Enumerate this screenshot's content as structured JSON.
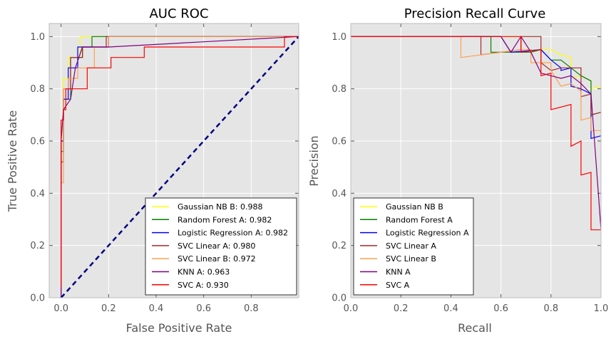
{
  "chart_data": [
    {
      "type": "line",
      "title": "AUC ROC",
      "xlabel": "False Positive Rate",
      "ylabel": "True Positive Rate",
      "xlim": [
        -0.05,
        1.0
      ],
      "ylim": [
        0.0,
        1.05
      ],
      "xticks": [
        "0.0",
        "0.2",
        "0.4",
        "0.6",
        "0.8"
      ],
      "xtick_values": [
        0,
        0.2,
        0.4,
        0.6,
        0.8
      ],
      "yticks": [
        "0.0",
        "0.2",
        "0.4",
        "0.6",
        "0.8",
        "1.0"
      ],
      "ytick_values": [
        0,
        0.2,
        0.4,
        0.6,
        0.8,
        1.0
      ],
      "grid": true,
      "legend_position": "lower-right",
      "series": [
        {
          "name": "Gaussian NB B:  0.988",
          "color": "#ffff00",
          "step": true,
          "x": [
            0,
            0,
            0.01,
            0.01,
            0.03,
            0.03,
            0.08,
            0.08,
            1.0
          ],
          "y": [
            0,
            0.52,
            0.52,
            0.84,
            0.84,
            0.92,
            0.92,
            1.0,
            1.0
          ]
        },
        {
          "name": "Random Forest A:  0.982",
          "color": "#008000",
          "step": true,
          "x": [
            0,
            0,
            0.01,
            0.01,
            0.04,
            0.04,
            0.09,
            0.09,
            0.13,
            0.13,
            1.0
          ],
          "y": [
            0,
            0.56,
            0.56,
            0.76,
            0.76,
            0.92,
            0.92,
            0.96,
            0.96,
            1.0,
            1.0
          ]
        },
        {
          "name": "Logistic Regression A:  0.982",
          "color": "#0000ff",
          "step": true,
          "x": [
            0,
            0,
            0.01,
            0.01,
            0.03,
            0.03,
            0.07,
            0.07,
            0.2,
            0.2,
            1.0
          ],
          "y": [
            0,
            0.6,
            0.6,
            0.76,
            0.76,
            0.88,
            0.88,
            0.96,
            0.96,
            1.0,
            1.0
          ]
        },
        {
          "name": "SVC Linear A:  0.980",
          "color": "#a52a2a",
          "step": true,
          "x": [
            0,
            0,
            0.01,
            0.01,
            0.04,
            0.04,
            0.09,
            0.09,
            0.19,
            0.19,
            1.0
          ],
          "y": [
            0,
            0.52,
            0.52,
            0.8,
            0.8,
            0.92,
            0.92,
            0.96,
            0.96,
            1.0,
            1.0
          ]
        },
        {
          "name": "SVC Linear B:  0.972",
          "color": "#ffa050",
          "step": true,
          "x": [
            0,
            0,
            0.01,
            0.01,
            0.03,
            0.03,
            0.07,
            0.07,
            0.14,
            0.14,
            0.2,
            0.2,
            1.0
          ],
          "y": [
            0,
            0.44,
            0.44,
            0.8,
            0.8,
            0.84,
            0.84,
            0.88,
            0.88,
            0.96,
            0.96,
            1.0,
            1.0
          ]
        },
        {
          "name": "KNN A:  0.963",
          "color": "#800080",
          "step": false,
          "x": [
            0,
            0.0,
            0.01,
            0.04,
            0.06,
            0.09,
            0.2,
            0.6,
            1.0
          ],
          "y": [
            0.0,
            0.6,
            0.72,
            0.76,
            0.88,
            0.96,
            0.96,
            0.98,
            1.0
          ]
        },
        {
          "name": "SVC A:  0.930",
          "color": "#ff0000",
          "step": true,
          "x": [
            0,
            0,
            0.01,
            0.01,
            0.02,
            0.02,
            0.11,
            0.11,
            0.21,
            0.21,
            0.35,
            0.35,
            0.94,
            0.94,
            1.0
          ],
          "y": [
            0.04,
            0.68,
            0.68,
            0.72,
            0.72,
            0.8,
            0.8,
            0.88,
            0.88,
            0.92,
            0.92,
            0.96,
            0.96,
            1.0,
            1.0
          ]
        },
        {
          "name": "",
          "color": "#000080",
          "dashed": true,
          "step": false,
          "x": [
            0,
            1.0
          ],
          "y": [
            0,
            1.0
          ]
        }
      ]
    },
    {
      "type": "line",
      "title": "Precision Recall Curve",
      "xlabel": "Recall",
      "ylabel": "Precision",
      "xlim": [
        0.0,
        1.0
      ],
      "ylim": [
        0.0,
        1.05
      ],
      "xticks": [
        "0.0",
        "0.2",
        "0.4",
        "0.6",
        "0.8",
        "1.0"
      ],
      "xtick_values": [
        0,
        0.2,
        0.4,
        0.6,
        0.8,
        1.0
      ],
      "yticks": [
        "0.0",
        "0.2",
        "0.4",
        "0.6",
        "0.8",
        "1.0"
      ],
      "ytick_values": [
        0,
        0.2,
        0.4,
        0.6,
        0.8,
        1.0
      ],
      "grid": true,
      "legend_position": "lower-left",
      "series": [
        {
          "name": "Gaussian NB B",
          "color": "#ffff00",
          "step": false,
          "x": [
            0,
            0.68,
            0.68,
            0.76,
            0.8,
            0.84,
            0.88,
            0.88,
            0.92,
            0.96,
            0.96,
            1.0
          ],
          "y": [
            1.0,
            1.0,
            0.94,
            0.95,
            0.95,
            0.93,
            0.92,
            0.84,
            0.85,
            0.83,
            0.8,
            0.81
          ]
        },
        {
          "name": "Random Forest A",
          "color": "#008000",
          "step": false,
          "x": [
            0,
            0.56,
            0.56,
            0.68,
            0.72,
            0.76,
            0.8,
            0.84,
            0.88,
            0.92,
            0.96,
            0.96,
            1.0
          ],
          "y": [
            1.0,
            1.0,
            0.94,
            0.94,
            0.94,
            0.95,
            0.91,
            0.91,
            0.88,
            0.85,
            0.83,
            0.7,
            0.71
          ]
        },
        {
          "name": "Logistic Regression A",
          "color": "#0000ff",
          "step": false,
          "x": [
            0,
            0.6,
            0.64,
            0.76,
            0.8,
            0.84,
            0.84,
            0.88,
            0.88,
            0.92,
            0.96,
            0.96,
            1.0
          ],
          "y": [
            1.0,
            1.0,
            0.94,
            0.95,
            0.91,
            0.88,
            0.87,
            0.88,
            0.81,
            0.8,
            0.78,
            0.61,
            0.62
          ]
        },
        {
          "name": "SVC Linear A",
          "color": "#a52a2a",
          "step": false,
          "x": [
            0,
            0.52,
            0.52,
            0.68,
            0.68,
            0.76,
            0.76,
            0.8,
            0.84,
            0.92,
            0.92,
            0.96,
            0.96,
            1.0
          ],
          "y": [
            1.0,
            1.0,
            0.93,
            0.95,
            1.0,
            1.0,
            0.9,
            0.87,
            0.88,
            0.88,
            0.77,
            0.78,
            0.7,
            0.71
          ]
        },
        {
          "name": "SVC Linear B",
          "color": "#ffa050",
          "step": false,
          "x": [
            0,
            0.44,
            0.44,
            0.68,
            0.72,
            0.72,
            0.8,
            0.8,
            0.84,
            0.88,
            0.92,
            0.92,
            0.96,
            0.96,
            1.0
          ],
          "y": [
            1.0,
            1.0,
            0.92,
            0.95,
            0.95,
            0.9,
            0.9,
            0.87,
            0.81,
            0.82,
            0.79,
            0.68,
            0.69,
            0.64,
            0.64
          ]
        },
        {
          "name": "KNN A",
          "color": "#800080",
          "step": false,
          "x": [
            0,
            0.6,
            0.64,
            0.68,
            0.72,
            0.76,
            0.8,
            0.84,
            0.88,
            0.92,
            0.96,
            1.0
          ],
          "y": [
            1.0,
            1.0,
            0.94,
            1.0,
            0.94,
            0.86,
            0.85,
            0.84,
            0.85,
            0.82,
            0.78,
            0.26
          ]
        },
        {
          "name": "SVC A",
          "color": "#ff0000",
          "step": false,
          "x": [
            0,
            0.68,
            0.68,
            0.76,
            0.76,
            0.8,
            0.8,
            0.88,
            0.88,
            0.92,
            0.92,
            0.96,
            0.96,
            1.0
          ],
          "y": [
            1.0,
            1.0,
            0.94,
            0.95,
            0.85,
            0.86,
            0.72,
            0.74,
            0.58,
            0.6,
            0.47,
            0.48,
            0.26,
            0.26
          ]
        }
      ]
    }
  ]
}
